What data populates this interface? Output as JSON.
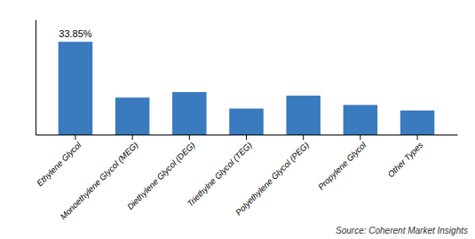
{
  "chart_data": {
    "type": "bar",
    "categories": [
      "Ethylene Glycol",
      "Monoethylene Glycol (MEG)",
      "Diethylene Glycol (DEG)",
      "Triethylne Glycol (TEG)",
      "Polyethylene Glycol (PEG)",
      "Propylene Glycol",
      "Other Types"
    ],
    "values": [
      33.85,
      13.5,
      15.5,
      9.5,
      14.2,
      10.8,
      8.8
    ],
    "color": "#3a7abf",
    "ylim": [
      0,
      42
    ],
    "tick_labels": "x",
    "grid": false,
    "annotations": [
      {
        "x": "Ethylene Glycol",
        "y": 33.85,
        "text": "33.85%"
      }
    ],
    "source": "Source: Coherent Market Insights"
  }
}
